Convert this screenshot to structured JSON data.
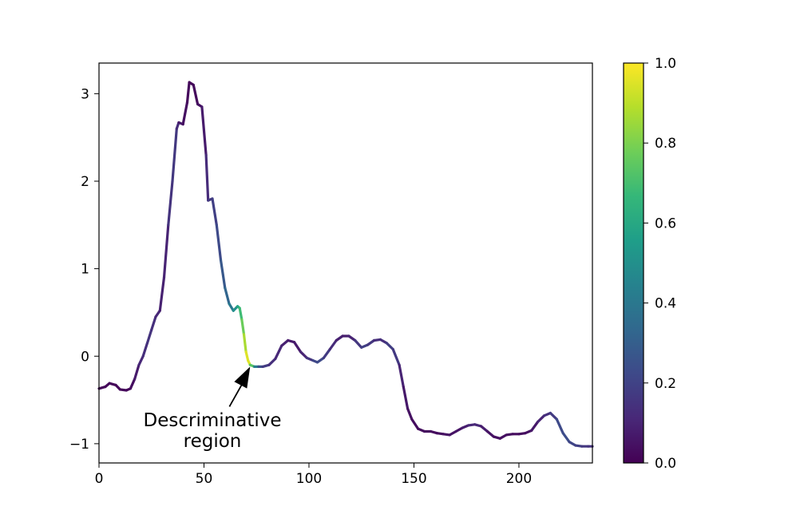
{
  "chart_data": {
    "type": "line",
    "title": "",
    "xlabel": "",
    "ylabel": "",
    "xlim": [
      0,
      235
    ],
    "ylim": [
      -1.22,
      3.35
    ],
    "xticks": [
      0,
      50,
      100,
      150,
      200
    ],
    "yticks": [
      -1,
      0,
      1,
      2,
      3
    ],
    "xtick_labels": [
      "0",
      "50",
      "100",
      "150",
      "200"
    ],
    "ytick_labels": [
      "−1",
      "0",
      "1",
      "2",
      "3"
    ],
    "colormap": "viridis",
    "colorbar": {
      "range": [
        0,
        1
      ],
      "ticks": [
        0,
        0.2,
        0.4,
        0.6,
        0.8,
        1.0
      ],
      "tick_labels": [
        "0.0",
        "0.2",
        "0.4",
        "0.6",
        "0.8",
        "1.0"
      ]
    },
    "series": [
      {
        "points": [
          [
            0,
            -0.37,
            0.02
          ],
          [
            3,
            -0.35,
            0.02
          ],
          [
            5,
            -0.31,
            0.02
          ],
          [
            8,
            -0.33,
            0.02
          ],
          [
            10,
            -0.38,
            0.02
          ],
          [
            13,
            -0.39,
            0.02
          ],
          [
            15,
            -0.37,
            0.02
          ],
          [
            17,
            -0.26,
            0.05
          ],
          [
            19,
            -0.1,
            0.1
          ],
          [
            21,
            0.0,
            0.12
          ],
          [
            23,
            0.15,
            0.15
          ],
          [
            25,
            0.3,
            0.15
          ],
          [
            27,
            0.45,
            0.12
          ],
          [
            29,
            0.52,
            0.1
          ],
          [
            31,
            0.9,
            0.08
          ],
          [
            33,
            1.5,
            0.12
          ],
          [
            35,
            2.0,
            0.18
          ],
          [
            37,
            2.6,
            0.15
          ],
          [
            38,
            2.67,
            0.1
          ],
          [
            40,
            2.65,
            0.05
          ],
          [
            42,
            2.9,
            0.03
          ],
          [
            43,
            3.13,
            0.02
          ],
          [
            45,
            3.1,
            0.02
          ],
          [
            47,
            2.88,
            0.03
          ],
          [
            49,
            2.85,
            0.05
          ],
          [
            51,
            2.3,
            0.1
          ],
          [
            52,
            1.78,
            0.15
          ],
          [
            54,
            1.8,
            0.18
          ],
          [
            56,
            1.5,
            0.2
          ],
          [
            58,
            1.1,
            0.25
          ],
          [
            60,
            0.78,
            0.3
          ],
          [
            62,
            0.6,
            0.35
          ],
          [
            64,
            0.52,
            0.45
          ],
          [
            66,
            0.57,
            0.55
          ],
          [
            67,
            0.55,
            0.65
          ],
          [
            68,
            0.42,
            0.72
          ],
          [
            69,
            0.25,
            0.82
          ],
          [
            70,
            0.05,
            0.92
          ],
          [
            71,
            -0.05,
            0.98
          ],
          [
            72,
            -0.1,
            0.92
          ],
          [
            74,
            -0.12,
            0.55
          ],
          [
            76,
            -0.12,
            0.3
          ],
          [
            78,
            -0.12,
            0.2
          ],
          [
            81,
            -0.1,
            0.15
          ],
          [
            84,
            -0.03,
            0.12
          ],
          [
            87,
            0.12,
            0.1
          ],
          [
            90,
            0.18,
            0.08
          ],
          [
            93,
            0.16,
            0.06
          ],
          [
            96,
            0.05,
            0.08
          ],
          [
            99,
            -0.02,
            0.12
          ],
          [
            102,
            -0.05,
            0.18
          ],
          [
            104,
            -0.07,
            0.25
          ],
          [
            107,
            -0.02,
            0.2
          ],
          [
            110,
            0.08,
            0.15
          ],
          [
            113,
            0.18,
            0.1
          ],
          [
            116,
            0.23,
            0.08
          ],
          [
            119,
            0.23,
            0.08
          ],
          [
            122,
            0.18,
            0.12
          ],
          [
            125,
            0.1,
            0.2
          ],
          [
            128,
            0.13,
            0.18
          ],
          [
            131,
            0.18,
            0.14
          ],
          [
            134,
            0.19,
            0.12
          ],
          [
            137,
            0.15,
            0.15
          ],
          [
            140,
            0.08,
            0.22
          ],
          [
            143,
            -0.1,
            0.12
          ],
          [
            145,
            -0.35,
            0.08
          ],
          [
            147,
            -0.6,
            0.05
          ],
          [
            149,
            -0.72,
            0.04
          ],
          [
            152,
            -0.83,
            0.03
          ],
          [
            155,
            -0.86,
            0.03
          ],
          [
            158,
            -0.86,
            0.03
          ],
          [
            161,
            -0.88,
            0.03
          ],
          [
            164,
            -0.89,
            0.04
          ],
          [
            167,
            -0.9,
            0.05
          ],
          [
            170,
            -0.86,
            0.05
          ],
          [
            173,
            -0.82,
            0.06
          ],
          [
            176,
            -0.79,
            0.1
          ],
          [
            179,
            -0.78,
            0.12
          ],
          [
            182,
            -0.8,
            0.1
          ],
          [
            185,
            -0.86,
            0.06
          ],
          [
            188,
            -0.92,
            0.04
          ],
          [
            191,
            -0.94,
            0.04
          ],
          [
            194,
            -0.9,
            0.04
          ],
          [
            197,
            -0.89,
            0.03
          ],
          [
            200,
            -0.89,
            0.03
          ],
          [
            203,
            -0.88,
            0.03
          ],
          [
            206,
            -0.85,
            0.05
          ],
          [
            209,
            -0.75,
            0.08
          ],
          [
            212,
            -0.68,
            0.12
          ],
          [
            215,
            -0.65,
            0.15
          ],
          [
            218,
            -0.72,
            0.2
          ],
          [
            221,
            -0.88,
            0.25
          ],
          [
            224,
            -0.98,
            0.22
          ],
          [
            227,
            -1.02,
            0.2
          ],
          [
            230,
            -1.03,
            0.18
          ],
          [
            233,
            -1.03,
            0.15
          ],
          [
            235,
            -1.03,
            0.15
          ]
        ]
      }
    ],
    "annotations": [
      {
        "text_lines": [
          "Descriminative",
          "region"
        ],
        "arrow_to": [
          72,
          -0.12
        ],
        "text_at": [
          54,
          -0.8
        ]
      }
    ]
  },
  "colors": {
    "viridis": [
      "#440154",
      "#482878",
      "#3e4989",
      "#31688e",
      "#26828e",
      "#1f9e89",
      "#35b779",
      "#6ece58",
      "#b5de2b",
      "#fde725"
    ],
    "axes": "#000000",
    "background": "#ffffff"
  }
}
